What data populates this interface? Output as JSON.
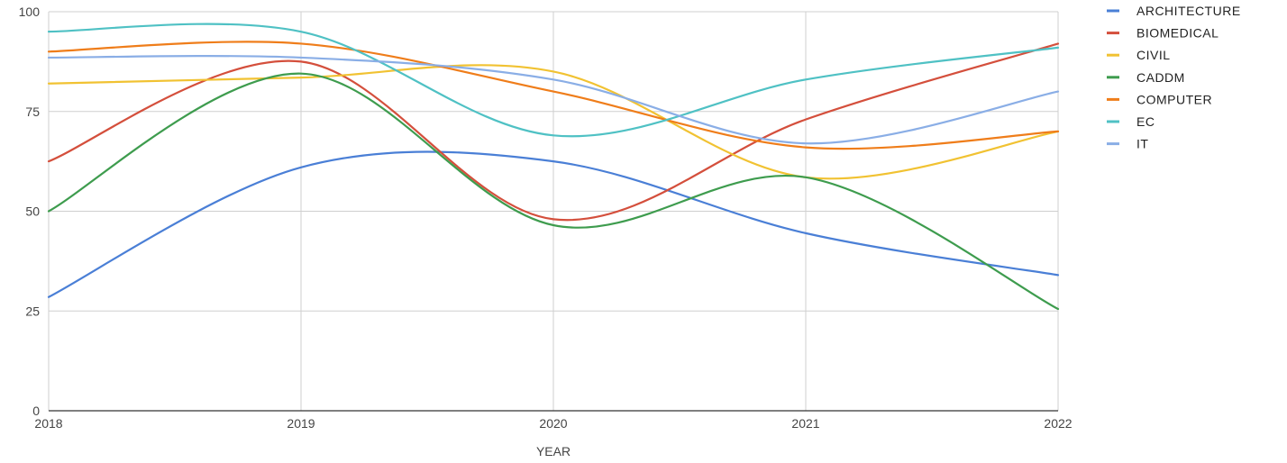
{
  "chart_data": {
    "type": "line",
    "curve": "smooth",
    "x": [
      "2018",
      "2019",
      "2020",
      "2021",
      "2022"
    ],
    "xlabel": "YEAR",
    "ylabel": "",
    "title": "",
    "ylim": [
      0,
      100
    ],
    "yticks": [
      0,
      25,
      50,
      75,
      100
    ],
    "grid": true,
    "legend_position": "right",
    "series": [
      {
        "name": "ARCHITECTURE",
        "color": "#4a7fd6",
        "values": [
          28.5,
          61,
          62.5,
          44.5,
          34
        ]
      },
      {
        "name": "BIOMEDICAL",
        "color": "#d44f3c",
        "values": [
          62.5,
          87.5,
          48,
          73,
          92
        ]
      },
      {
        "name": "CIVIL",
        "color": "#f1c232",
        "values": [
          82,
          83.5,
          85,
          58.5,
          70
        ]
      },
      {
        "name": "CADDM",
        "color": "#3e9c4e",
        "values": [
          50,
          84.5,
          46.5,
          58.5,
          25.5
        ]
      },
      {
        "name": "COMPUTER",
        "color": "#ef7d1a",
        "values": [
          90,
          92,
          80,
          66,
          70
        ]
      },
      {
        "name": "EC",
        "color": "#4fc1c4",
        "values": [
          95,
          95,
          69,
          83,
          91
        ]
      },
      {
        "name": "IT",
        "color": "#8aaee6",
        "values": [
          88.5,
          88.5,
          83,
          67,
          80
        ]
      }
    ]
  }
}
